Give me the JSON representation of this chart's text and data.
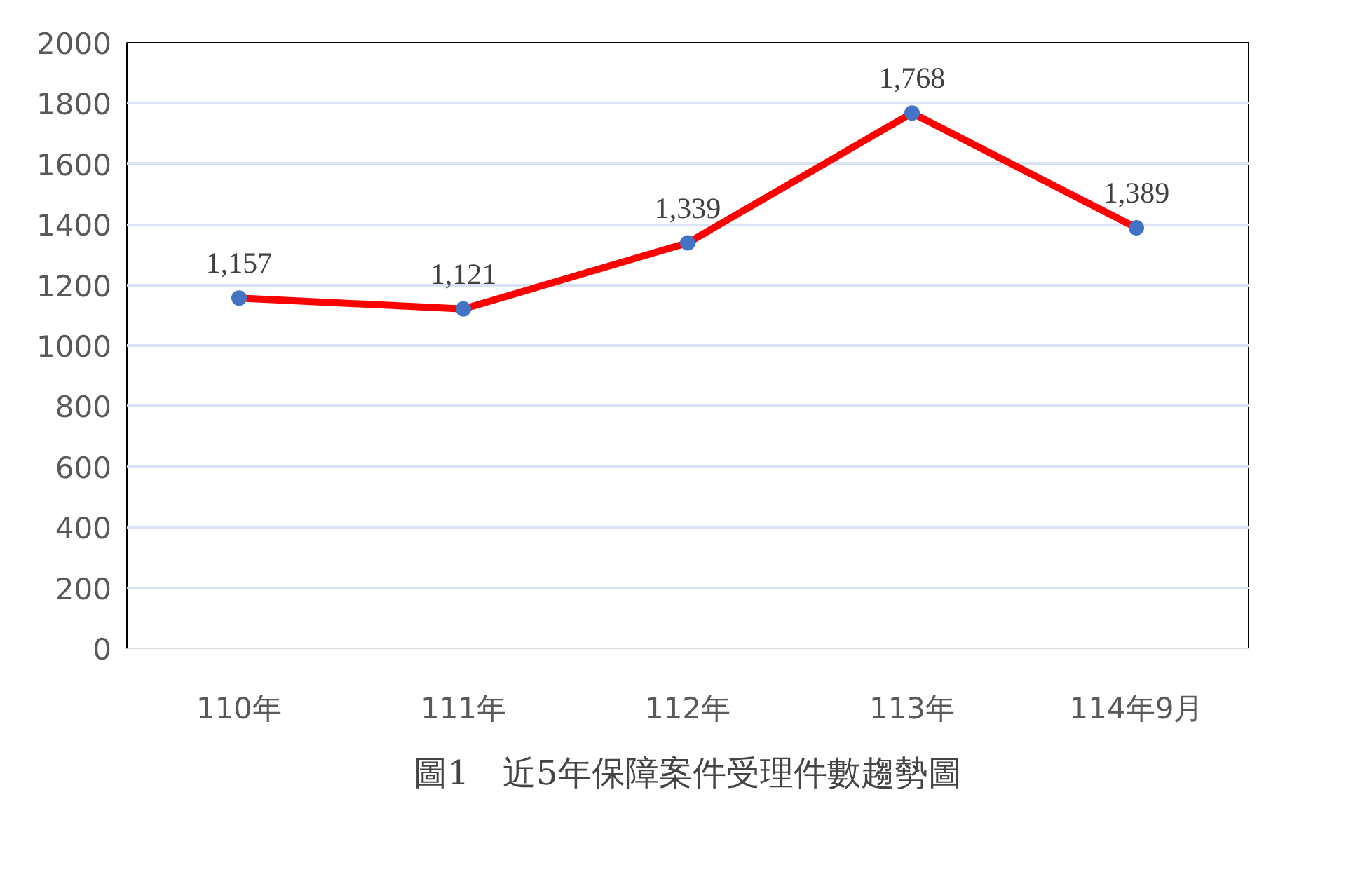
{
  "chart_data": {
    "type": "line",
    "categories": [
      "110年",
      "111年",
      "112年",
      "113年",
      "114年9月"
    ],
    "series": [
      {
        "color": "#ff0000",
        "colors": [
          "#4472c4",
          "#4472c4",
          "#4472c4",
          "#4472c4",
          "#4472c4"
        ],
        "values": [
          1157,
          1121,
          1339,
          1768,
          1389
        ],
        "value_labels": [
          "1,157",
          "1,121",
          "1,339",
          "1,768",
          "1,389"
        ]
      }
    ],
    "ylim": [
      0,
      2000
    ],
    "yticks": [
      0,
      200,
      400,
      600,
      800,
      1000,
      1200,
      1400,
      1600,
      1800,
      2000
    ],
    "grid": "y",
    "marker": "circle",
    "line_style": "solid",
    "annotations": [
      "圖1　近5年保障案件受理件數趨勢圖"
    ]
  }
}
